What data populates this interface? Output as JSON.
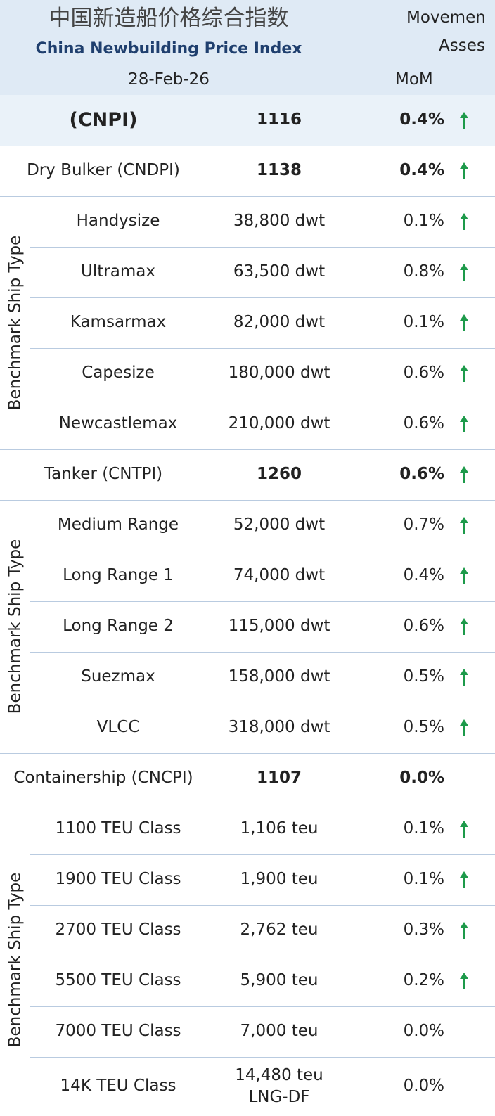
{
  "header": {
    "title_cn": "中国新造船价格综合指数",
    "title_en": "China Newbuilding Price Index",
    "date": "28-Feb-26",
    "movement": "Movemen",
    "assessment": "Asses",
    "mom": "MoM"
  },
  "index": {
    "name": "(CNPI)",
    "value": "1116",
    "mom": "0.4%"
  },
  "groups": [
    {
      "name": "Dry Bulker (CNDPI)",
      "value": "1138",
      "mom": "0.4%",
      "side_label": "Benchmark Ship Type",
      "ships": [
        {
          "name": "Handysize",
          "size": "38,800 dwt",
          "mom": "0.1%"
        },
        {
          "name": "Ultramax",
          "size": "63,500 dwt",
          "mom": "0.8%"
        },
        {
          "name": "Kamsarmax",
          "size": "82,000 dwt",
          "mom": "0.1%"
        },
        {
          "name": "Capesize",
          "size": "180,000 dwt",
          "mom": "0.6%"
        },
        {
          "name": "Newcastlemax",
          "size": "210,000 dwt",
          "mom": "0.6%"
        }
      ]
    },
    {
      "name": "Tanker (CNTPI)",
      "value": "1260",
      "mom": "0.6%",
      "side_label": "Benchmark Ship Type",
      "ships": [
        {
          "name": "Medium Range",
          "size": "52,000 dwt",
          "mom": "0.7%"
        },
        {
          "name": "Long Range 1",
          "size": "74,000 dwt",
          "mom": "0.4%"
        },
        {
          "name": "Long Range 2",
          "size": "115,000 dwt",
          "mom": "0.6%"
        },
        {
          "name": "Suezmax",
          "size": "158,000 dwt",
          "mom": "0.5%"
        },
        {
          "name": "VLCC",
          "size": "318,000 dwt",
          "mom": "0.5%"
        }
      ]
    },
    {
      "name": "Containership (CNCPI)",
      "value": "1107",
      "mom": "0.0%",
      "side_label": "Benchmark Ship Type",
      "ships": [
        {
          "name": "1100 TEU Class",
          "size": "1,106 teu",
          "mom": "0.1%"
        },
        {
          "name": "1900 TEU Class",
          "size": "1,900 teu",
          "mom": "0.1%"
        },
        {
          "name": "2700 TEU Class",
          "size": "2,762 teu",
          "mom": "0.3%"
        },
        {
          "name": "5500 TEU Class",
          "size": "5,900 teu",
          "mom": "0.2%"
        },
        {
          "name": "7000 TEU Class",
          "size": "7,000 teu",
          "mom": "0.0%"
        },
        {
          "name": "14K TEU Class",
          "size": "14,480 teu\nLNG-DF",
          "mom": "0.0%"
        }
      ]
    }
  ]
}
